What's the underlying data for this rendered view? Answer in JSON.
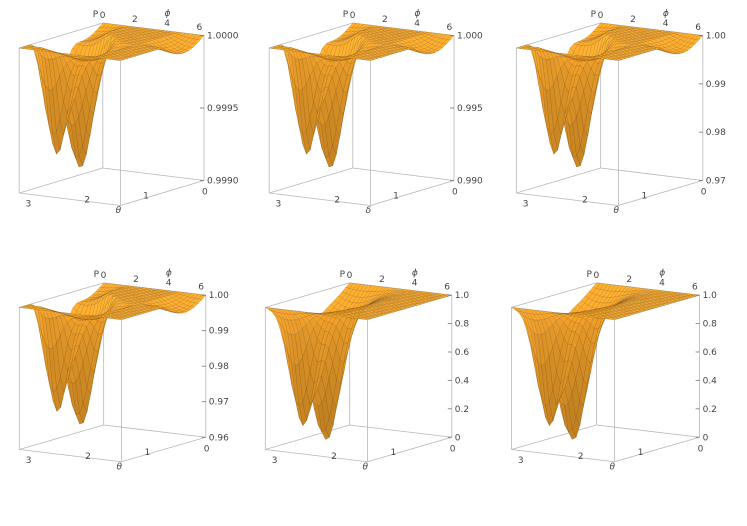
{
  "chart_data": [
    {
      "type": "surface3d",
      "zlabel": "P",
      "phi_label": "ϕ",
      "theta_label": "θ",
      "phi_ticks": [
        "0",
        "2",
        "4",
        "6"
      ],
      "theta_ticks": [
        "3",
        "2",
        "1",
        "0"
      ],
      "z_ticks": [
        "1.0000",
        "0.9995",
        "0.9990"
      ],
      "zlim": [
        0.999,
        1.0
      ],
      "phi_range": [
        0,
        6.2832
      ],
      "theta_range": [
        0,
        3.1416
      ],
      "surface_color": "#f0a02a"
    },
    {
      "type": "surface3d",
      "zlabel": "P",
      "phi_label": "ϕ",
      "theta_label": "δ",
      "phi_ticks": [
        "0",
        "2",
        "4",
        "6"
      ],
      "theta_ticks": [
        "3",
        "2",
        "1",
        "0"
      ],
      "z_ticks": [
        "1.000",
        "0.995",
        "0.990"
      ],
      "zlim": [
        0.99,
        1.0
      ],
      "phi_range": [
        0,
        6.2832
      ],
      "theta_range": [
        0,
        3.1416
      ],
      "surface_color": "#f0a02a"
    },
    {
      "type": "surface3d",
      "zlabel": "P",
      "phi_label": "ϕ",
      "theta_label": "θ",
      "phi_ticks": [
        "0",
        "2",
        "4",
        "6"
      ],
      "theta_ticks": [
        "3",
        "2",
        "1",
        "0"
      ],
      "z_ticks": [
        "1.00",
        "0.99",
        "0.98",
        "0.97"
      ],
      "zlim": [
        0.97,
        1.0
      ],
      "phi_range": [
        0,
        6.2832
      ],
      "theta_range": [
        0,
        3.1416
      ],
      "surface_color": "#f0a02a"
    },
    {
      "type": "surface3d",
      "zlabel": "P",
      "phi_label": "ϕ",
      "theta_label": "θ",
      "phi_ticks": [
        "0",
        "2",
        "4",
        "6"
      ],
      "theta_ticks": [
        "3",
        "2",
        "1",
        "0"
      ],
      "z_ticks": [
        "1.00",
        "0.99",
        "0.98",
        "0.97",
        "0.96"
      ],
      "zlim": [
        0.96,
        1.0
      ],
      "phi_range": [
        0,
        6.2832
      ],
      "theta_range": [
        0,
        3.1416
      ],
      "surface_color": "#f0a02a"
    },
    {
      "type": "surface3d",
      "zlabel": "P",
      "phi_label": "ϕ",
      "theta_label": "θ",
      "phi_ticks": [
        "0",
        "2",
        "4",
        "6"
      ],
      "theta_ticks": [
        "3",
        "2",
        "1",
        "0"
      ],
      "z_ticks": [
        "1.0",
        "0.8",
        "0.6",
        "0.4",
        "0.2",
        "0"
      ],
      "zlim": [
        0,
        1.0
      ],
      "phi_range": [
        0,
        6.2832
      ],
      "theta_range": [
        0,
        3.1416
      ],
      "surface_color": "#f0a02a"
    },
    {
      "type": "surface3d",
      "zlabel": "P",
      "phi_label": "ϕ",
      "theta_label": "θ",
      "phi_ticks": [
        "0",
        "2",
        "4",
        "6"
      ],
      "theta_ticks": [
        "3",
        "2",
        "1",
        "0"
      ],
      "z_ticks": [
        "1.0",
        "0.8",
        "0.6",
        "0.4",
        "0.2",
        "0"
      ],
      "zlim": [
        0,
        1.0
      ],
      "phi_range": [
        0,
        6.2832
      ],
      "theta_range": [
        0,
        3.1416
      ],
      "surface_color": "#f0a02a"
    }
  ]
}
